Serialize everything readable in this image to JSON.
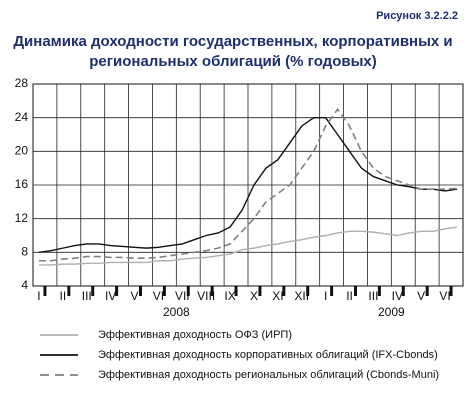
{
  "chart_data": {
    "type": "line",
    "caption": "Рисунок 3.2.2.2",
    "title_lines": [
      "Динамика доходности государственных, корпоративных и",
      "региональных облигаций (% годовых)"
    ],
    "categories": [
      "I",
      null,
      "II",
      null,
      "III",
      null,
      "IV",
      null,
      "V",
      null,
      "VI",
      null,
      "VII",
      null,
      "VIII",
      null,
      "IX",
      null,
      "X",
      null,
      "XI",
      null,
      "XII",
      null,
      "I",
      null,
      "II",
      null,
      "III",
      null,
      "IV",
      null,
      "V",
      null,
      "VI",
      null
    ],
    "year_labels": [
      "2008",
      "2009"
    ],
    "series": [
      {
        "name": "Эффективная доходность ОФЗ (ИРП)",
        "color": "#b0b0b0",
        "dash": false,
        "values": [
          6.5,
          6.5,
          6.6,
          6.6,
          6.7,
          6.7,
          6.8,
          6.8,
          6.8,
          6.8,
          7,
          7,
          7.2,
          7.3,
          7.4,
          7.6,
          7.8,
          8.3,
          8.5,
          8.8,
          9,
          9.3,
          9.5,
          9.8,
          10,
          10.3,
          10.5,
          10.5,
          10.4,
          10.2,
          10,
          10.3,
          10.5,
          10.5,
          10.8,
          11
        ]
      },
      {
        "name": "Эффективная доходность корпоративных облигаций (IFX-Cbonds)",
        "color": "#111111",
        "dash": false,
        "values": [
          8,
          8.2,
          8.5,
          8.8,
          9,
          9,
          8.8,
          8.7,
          8.6,
          8.5,
          8.6,
          8.8,
          9,
          9.5,
          10,
          10.3,
          11,
          13,
          16,
          18,
          19,
          21,
          23,
          24,
          24,
          22,
          20,
          18,
          17,
          16.5,
          16,
          15.8,
          15.5,
          15.5,
          15.3,
          15.5
        ]
      },
      {
        "name": "Эффективная доходность региональных облигаций (Cbonds-Muni)",
        "color": "#808080",
        "dash": true,
        "values": [
          7,
          7,
          7.2,
          7.3,
          7.5,
          7.5,
          7.4,
          7.4,
          7.3,
          7.3,
          7.4,
          7.6,
          7.8,
          8,
          8.2,
          8.5,
          9,
          10.5,
          12,
          14,
          15,
          16,
          18,
          20,
          23,
          25,
          23,
          20,
          18,
          17,
          16.5,
          16,
          15.5,
          15.5,
          15.5,
          15.6
        ]
      }
    ],
    "ylim": [
      4,
      28
    ],
    "yticks": [
      4,
      8,
      12,
      16,
      20,
      24,
      28
    ],
    "grid": true
  }
}
